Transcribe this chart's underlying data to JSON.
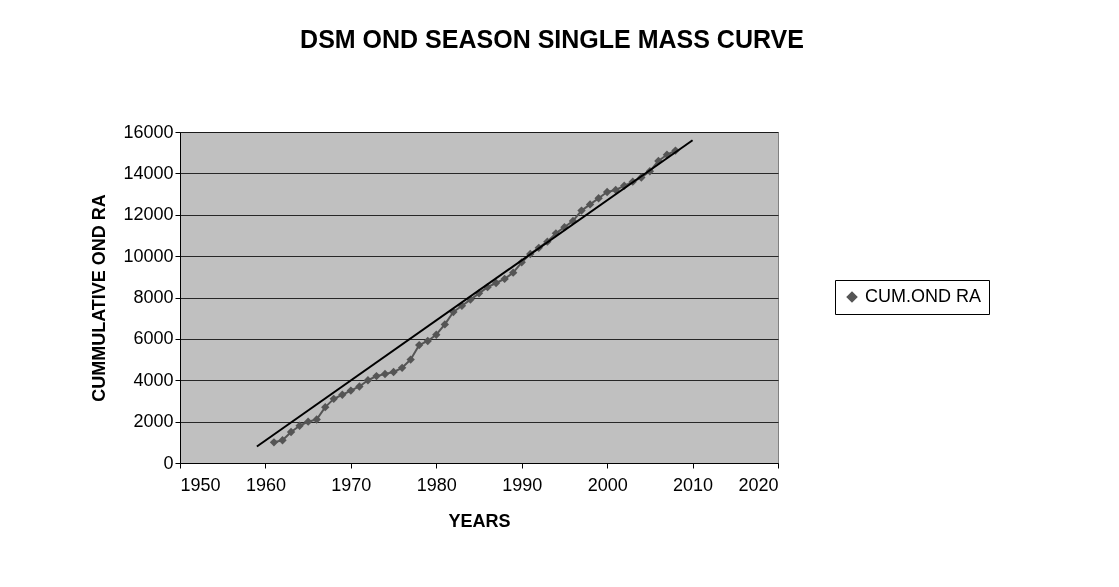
{
  "chart_data": {
    "type": "line",
    "title": "DSM OND SEASON SINGLE MASS CURVE",
    "xlabel": "YEARS",
    "ylabel": "CUMMULATIVE OND RA",
    "x": [
      1961,
      1962,
      1963,
      1964,
      1965,
      1966,
      1967,
      1968,
      1969,
      1970,
      1971,
      1972,
      1973,
      1974,
      1975,
      1976,
      1977,
      1978,
      1979,
      1980,
      1981,
      1982,
      1983,
      1984,
      1985,
      1986,
      1987,
      1988,
      1989,
      1990,
      1991,
      1992,
      1993,
      1994,
      1995,
      1996,
      1997,
      1998,
      1999,
      2000,
      2001,
      2002,
      2003,
      2004,
      2005,
      2006,
      2007,
      2008
    ],
    "series": [
      {
        "name": "CUM.OND RA",
        "color": "#555555",
        "marker": "diamond",
        "values": [
          1000,
          1100,
          1500,
          1800,
          2000,
          2100,
          2700,
          3100,
          3300,
          3500,
          3700,
          4000,
          4200,
          4300,
          4400,
          4600,
          5000,
          5700,
          5900,
          6200,
          6700,
          7300,
          7600,
          7900,
          8200,
          8500,
          8700,
          8900,
          9200,
          9700,
          10100,
          10400,
          10700,
          11100,
          11400,
          11700,
          12200,
          12500,
          12800,
          13100,
          13200,
          13400,
          13600,
          13800,
          14100,
          14600,
          14900,
          15100
        ]
      },
      {
        "type": "line",
        "color": "#000000",
        "marker": "none",
        "x": [
          1959,
          2010
        ],
        "values": [
          800,
          15600
        ]
      }
    ],
    "xlim": [
      1950,
      2020
    ],
    "xticks": [
      1950,
      1960,
      1970,
      1980,
      1990,
      2000,
      2010,
      2020
    ],
    "ylim": [
      0,
      16000
    ],
    "yticks": [
      0,
      2000,
      4000,
      6000,
      8000,
      10000,
      12000,
      14000,
      16000
    ],
    "grid": "y",
    "legend": "right"
  }
}
